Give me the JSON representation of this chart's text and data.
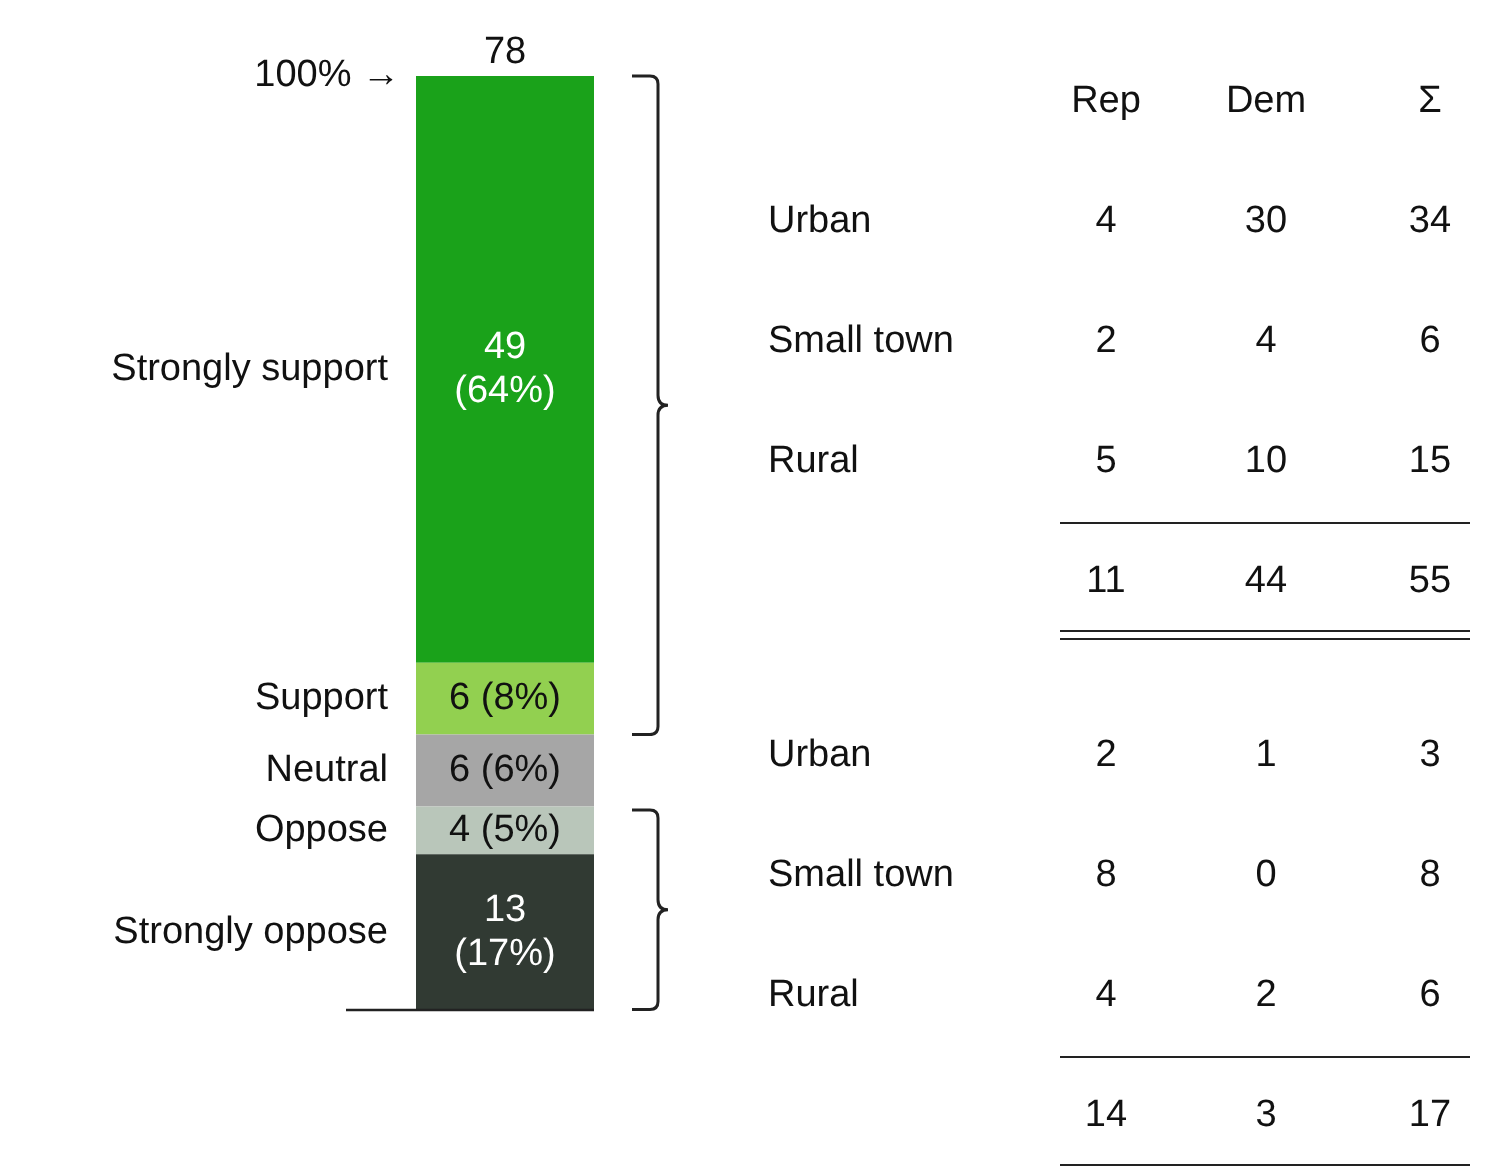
{
  "chart_data": [
    {
      "type": "bar",
      "stacked": true,
      "categories": [
        null
      ],
      "ylim": [
        0,
        78
      ],
      "tick_labels": false,
      "series": [
        {
          "name": "Strongly oppose",
          "color": "#313a33",
          "values": [
            13
          ],
          "value_labels": [
            "13\n(17%)"
          ]
        },
        {
          "name": "Oppose",
          "color": "#b9c6ba",
          "values": [
            4
          ],
          "value_labels": [
            "4 (5%)"
          ]
        },
        {
          "name": "Neutral",
          "color": "#a6a6a6",
          "values": [
            6
          ],
          "value_labels": [
            "6 (6%)"
          ]
        },
        {
          "name": "Support",
          "color": "#92d050",
          "values": [
            6
          ],
          "value_labels": [
            "6 (8%)"
          ]
        },
        {
          "name": "Strongly support",
          "color": "#1aa21a",
          "values": [
            49
          ],
          "value_labels": [
            "49\n(64%)"
          ]
        }
      ],
      "totals": [
        "78"
      ],
      "annotations": [
        "100% →"
      ]
    },
    {
      "type": "heatmap",
      "data_labels": true,
      "categories": [
        "Rep",
        "Dem",
        "Σ"
      ],
      "y_categories": [
        "Urban",
        "Small town",
        "Rural",
        null,
        "Urban",
        "Small town",
        "Rural",
        null
      ],
      "cells": [
        [
          4,
          30,
          34
        ],
        [
          2,
          4,
          6
        ],
        [
          5,
          10,
          15
        ],
        [
          11,
          44,
          55
        ],
        [
          2,
          1,
          3
        ],
        [
          8,
          0,
          8
        ],
        [
          4,
          2,
          6
        ],
        [
          14,
          3,
          17
        ]
      ]
    }
  ]
}
